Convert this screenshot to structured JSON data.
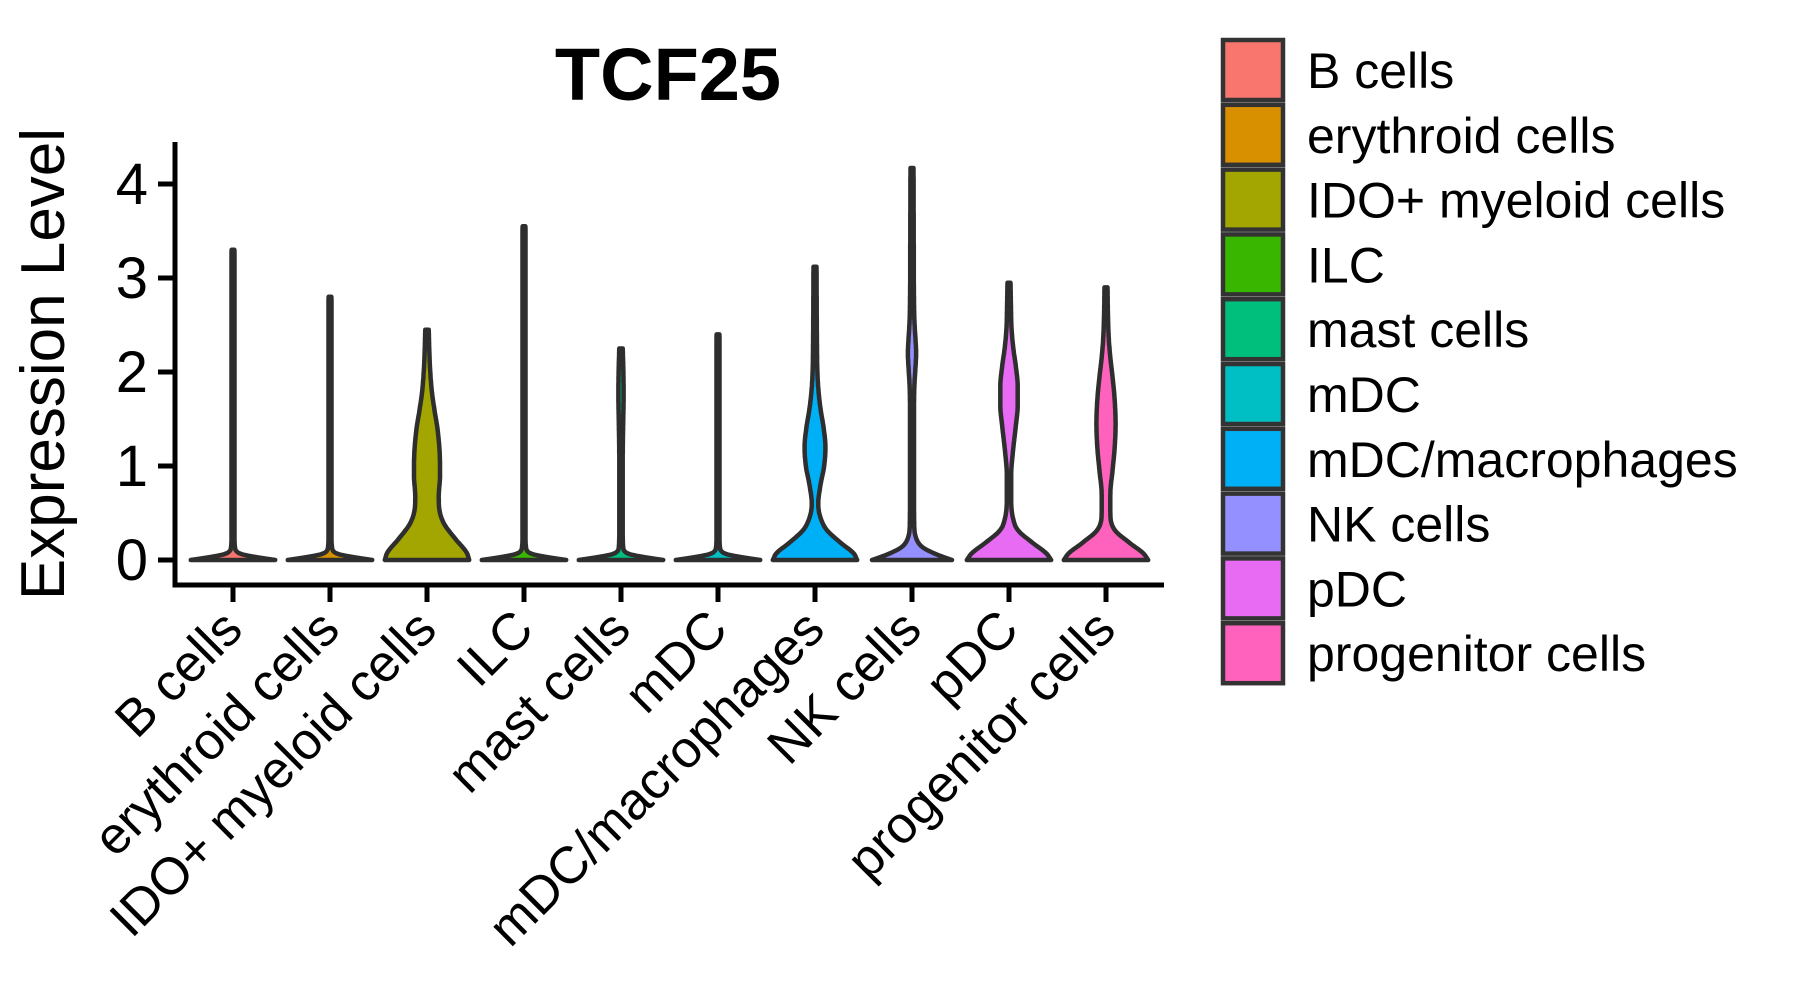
{
  "figure": {
    "background": "#ffffff",
    "outline_color": "#2e2e2e",
    "axis_color": "#000000"
  },
  "chart_data": {
    "type": "violin",
    "title": "TCF25",
    "xlabel": "",
    "ylabel": "Expression Level",
    "ylim": [
      -0.28,
      4.43
    ],
    "y_tick_labels": [
      "0",
      "1",
      "2",
      "3",
      "4"
    ],
    "y_tick_values": [
      0,
      1,
      2,
      3,
      4
    ],
    "grid": "off",
    "legend_position": "right",
    "series": [
      {
        "name": "B cells",
        "color": "#F8766D",
        "max_expression": 3.3,
        "width_profile": [
          [
            0,
            0.97
          ],
          [
            0.03,
            0.55
          ],
          [
            0.07,
            0.15
          ],
          [
            0.14,
            0.045
          ],
          [
            0.25,
            0.035
          ],
          [
            3.1,
            0.035
          ],
          [
            3.3,
            0.033
          ]
        ]
      },
      {
        "name": "erythroid cells",
        "color": "#D89000",
        "max_expression": 2.8,
        "width_profile": [
          [
            0,
            0.97
          ],
          [
            0.03,
            0.55
          ],
          [
            0.07,
            0.15
          ],
          [
            0.14,
            0.045
          ],
          [
            0.25,
            0.035
          ],
          [
            2.6,
            0.035
          ],
          [
            2.8,
            0.033
          ]
        ]
      },
      {
        "name": "IDO+ myeloid cells",
        "color": "#A3A500",
        "max_expression": 2.45,
        "width_profile": [
          [
            0,
            0.97
          ],
          [
            0.08,
            0.91
          ],
          [
            0.22,
            0.66
          ],
          [
            0.38,
            0.4
          ],
          [
            0.52,
            0.29
          ],
          [
            0.68,
            0.27
          ],
          [
            0.9,
            0.3
          ],
          [
            1.15,
            0.29
          ],
          [
            1.4,
            0.24
          ],
          [
            1.6,
            0.17
          ],
          [
            1.8,
            0.11
          ],
          [
            2.0,
            0.075
          ],
          [
            2.2,
            0.055
          ],
          [
            2.45,
            0.04
          ]
        ]
      },
      {
        "name": "ILC",
        "color": "#39B600",
        "max_expression": 3.55,
        "width_profile": [
          [
            0,
            0.97
          ],
          [
            0.03,
            0.55
          ],
          [
            0.07,
            0.15
          ],
          [
            0.14,
            0.045
          ],
          [
            0.25,
            0.035
          ],
          [
            3.35,
            0.035
          ],
          [
            3.55,
            0.033
          ]
        ]
      },
      {
        "name": "mast cells",
        "color": "#00BF7D",
        "max_expression": 2.25,
        "width_profile": [
          [
            0,
            0.97
          ],
          [
            0.03,
            0.55
          ],
          [
            0.07,
            0.15
          ],
          [
            0.14,
            0.05
          ],
          [
            0.3,
            0.04
          ],
          [
            1.1,
            0.04
          ],
          [
            1.45,
            0.05
          ],
          [
            1.75,
            0.06
          ],
          [
            2.0,
            0.055
          ],
          [
            2.25,
            0.04
          ]
        ]
      },
      {
        "name": "mDC",
        "color": "#00BFC4",
        "max_expression": 2.4,
        "width_profile": [
          [
            0,
            0.97
          ],
          [
            0.03,
            0.55
          ],
          [
            0.07,
            0.15
          ],
          [
            0.14,
            0.045
          ],
          [
            0.25,
            0.035
          ],
          [
            2.2,
            0.035
          ],
          [
            2.4,
            0.033
          ]
        ]
      },
      {
        "name": "mDC/macrophages",
        "color": "#00B0F6",
        "max_expression": 3.12,
        "width_profile": [
          [
            0,
            0.97
          ],
          [
            0.07,
            0.89
          ],
          [
            0.18,
            0.6
          ],
          [
            0.32,
            0.27
          ],
          [
            0.46,
            0.12
          ],
          [
            0.6,
            0.075
          ],
          [
            0.78,
            0.12
          ],
          [
            1.0,
            0.21
          ],
          [
            1.2,
            0.24
          ],
          [
            1.4,
            0.2
          ],
          [
            1.6,
            0.13
          ],
          [
            1.8,
            0.08
          ],
          [
            2.0,
            0.055
          ],
          [
            2.3,
            0.045
          ],
          [
            3.12,
            0.035
          ]
        ]
      },
      {
        "name": "NK cells",
        "color": "#9590FF",
        "max_expression": 4.17,
        "width_profile": [
          [
            0,
            0.92
          ],
          [
            0.05,
            0.62
          ],
          [
            0.13,
            0.26
          ],
          [
            0.24,
            0.09
          ],
          [
            0.4,
            0.05
          ],
          [
            0.8,
            0.045
          ],
          [
            1.5,
            0.045
          ],
          [
            1.85,
            0.055
          ],
          [
            2.05,
            0.08
          ],
          [
            2.2,
            0.095
          ],
          [
            2.35,
            0.08
          ],
          [
            2.55,
            0.055
          ],
          [
            2.8,
            0.045
          ],
          [
            3.4,
            0.04
          ],
          [
            4.17,
            0.035
          ]
        ]
      },
      {
        "name": "pDC",
        "color": "#E76BF3",
        "max_expression": 2.95,
        "width_profile": [
          [
            0,
            0.97
          ],
          [
            0.07,
            0.86
          ],
          [
            0.18,
            0.55
          ],
          [
            0.32,
            0.2
          ],
          [
            0.45,
            0.09
          ],
          [
            0.65,
            0.05
          ],
          [
            0.9,
            0.05
          ],
          [
            1.15,
            0.09
          ],
          [
            1.4,
            0.15
          ],
          [
            1.65,
            0.2
          ],
          [
            1.85,
            0.2
          ],
          [
            2.05,
            0.16
          ],
          [
            2.25,
            0.1
          ],
          [
            2.45,
            0.06
          ],
          [
            2.7,
            0.045
          ],
          [
            2.95,
            0.035
          ]
        ]
      },
      {
        "name": "progenitor cells",
        "color": "#FF62BC",
        "max_expression": 2.9,
        "width_profile": [
          [
            0,
            0.97
          ],
          [
            0.07,
            0.86
          ],
          [
            0.18,
            0.55
          ],
          [
            0.32,
            0.2
          ],
          [
            0.5,
            0.1
          ],
          [
            0.7,
            0.1
          ],
          [
            0.95,
            0.15
          ],
          [
            1.2,
            0.2
          ],
          [
            1.45,
            0.22
          ],
          [
            1.7,
            0.2
          ],
          [
            1.95,
            0.15
          ],
          [
            2.15,
            0.1
          ],
          [
            2.35,
            0.065
          ],
          [
            2.6,
            0.045
          ],
          [
            2.9,
            0.035
          ]
        ]
      }
    ]
  },
  "legend": {
    "items": [
      {
        "label": "B cells",
        "color": "#F8766D"
      },
      {
        "label": "erythroid cells",
        "color": "#D89000"
      },
      {
        "label": "IDO+ myeloid cells",
        "color": "#A3A500"
      },
      {
        "label": "ILC",
        "color": "#39B600"
      },
      {
        "label": "mast cells",
        "color": "#00BF7D"
      },
      {
        "label": "mDC",
        "color": "#00BFC4"
      },
      {
        "label": "mDC/macrophages",
        "color": "#00B0F6"
      },
      {
        "label": "NK cells",
        "color": "#9590FF"
      },
      {
        "label": "pDC",
        "color": "#E76BF3"
      },
      {
        "label": "progenitor cells",
        "color": "#FF62BC"
      }
    ]
  }
}
